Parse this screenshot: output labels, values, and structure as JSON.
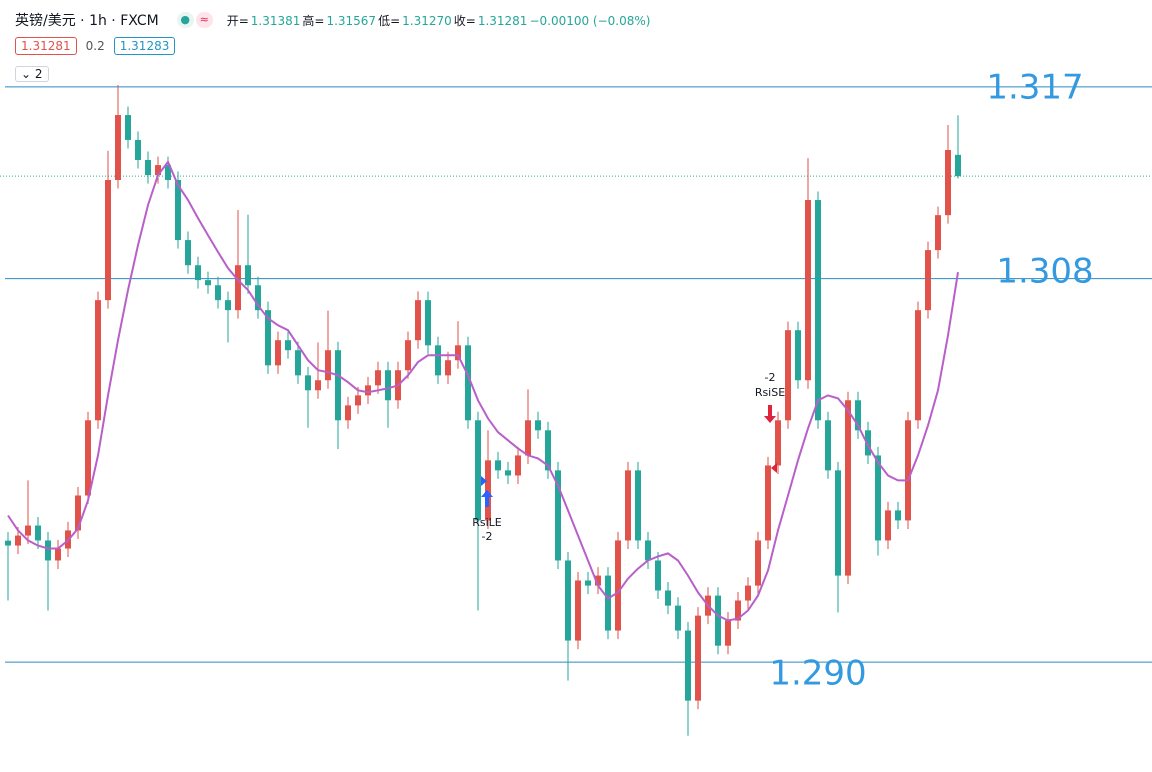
{
  "header": {
    "symbol": "英镑/美元 · 1h · FXCM",
    "ohlc": [
      {
        "label": "开=",
        "value": "1.31381"
      },
      {
        "label": "高=",
        "value": "1.31567"
      },
      {
        "label": "低=",
        "value": "1.31270"
      },
      {
        "label": "收=",
        "value": "1.31281"
      }
    ],
    "change": "−0.00100 (−0.08%)",
    "bid": "1.31281",
    "spread": "0.2",
    "ask": "1.31283",
    "indicators": "2"
  },
  "chart_data": {
    "type": "candlestick",
    "up_color": "#e0524a",
    "down_color": "#26a69a",
    "ylim": [
      1.28484,
      1.32108
    ],
    "open": [
      1.2957,
      1.29547,
      1.29594,
      1.29641,
      1.29571,
      1.29477,
      1.29533,
      1.29618,
      1.29782,
      1.30135,
      1.30699,
      1.31263,
      1.31568,
      1.31451,
      1.31357,
      1.31286,
      1.31333,
      1.31263,
      1.30981,
      1.30863,
      1.30793,
      1.30769,
      1.30699,
      1.30652,
      1.30863,
      1.30769,
      1.30652,
      1.30393,
      1.30511,
      1.30464,
      1.30346,
      1.30276,
      1.30323,
      1.30464,
      1.30135,
      1.30205,
      1.30252,
      1.30299,
      1.3037,
      1.30229,
      1.3037,
      1.30511,
      1.30699,
      1.30487,
      1.30346,
      1.30417,
      1.30487,
      1.30135,
      1.29665,
      1.29947,
      1.299,
      1.29876,
      1.2997,
      1.30135,
      1.30088,
      1.299,
      1.29477,
      1.29101,
      1.29383,
      1.29359,
      1.29406,
      1.29148,
      1.29571,
      1.299,
      1.29571,
      1.29477,
      1.29336,
      1.29265,
      1.29148,
      1.28819,
      1.29218,
      1.29312,
      1.29077,
      1.29195,
      1.29289,
      1.29359,
      1.29571,
      1.29923,
      1.30135,
      1.30558,
      1.30323,
      1.31169,
      1.30135,
      1.299,
      1.29406,
      1.30229,
      1.30088,
      1.2997,
      1.29571,
      1.29712,
      1.29665,
      1.30135,
      1.30652,
      1.30934,
      1.31098,
      1.31381
    ],
    "high": [
      1.2961,
      1.29634,
      1.29853,
      1.29681,
      1.29611,
      1.29573,
      1.29658,
      1.29822,
      1.30175,
      1.30739,
      1.314,
      1.31709,
      1.31608,
      1.31491,
      1.31397,
      1.31373,
      1.31373,
      1.31303,
      1.31021,
      1.30903,
      1.30833,
      1.30809,
      1.30739,
      1.31122,
      1.311,
      1.30809,
      1.30692,
      1.30551,
      1.30551,
      1.30504,
      1.30386,
      1.305,
      1.3065,
      1.30504,
      1.30245,
      1.30292,
      1.30339,
      1.3041,
      1.3041,
      1.3041,
      1.30551,
      1.3074,
      1.30739,
      1.30527,
      1.30457,
      1.306,
      1.30527,
      1.30175,
      1.30088,
      1.29987,
      1.2994,
      1.3001,
      1.3028,
      1.30175,
      1.30128,
      1.2994,
      1.29517,
      1.29423,
      1.29423,
      1.29446,
      1.29446,
      1.29611,
      1.2994,
      1.2994,
      1.29611,
      1.29517,
      1.29376,
      1.29305,
      1.29188,
      1.29258,
      1.29352,
      1.29352,
      1.29235,
      1.29329,
      1.29399,
      1.29611,
      1.29963,
      1.30175,
      1.30598,
      1.30598,
      1.31366,
      1.31209,
      1.30175,
      1.2994,
      1.30269,
      1.30269,
      1.30128,
      1.3001,
      1.29752,
      1.29752,
      1.30175,
      1.30692,
      1.30974,
      1.31138,
      1.31521,
      1.31567
    ],
    "low": [
      1.29289,
      1.29507,
      1.29554,
      1.29531,
      1.29242,
      1.29437,
      1.29493,
      1.29578,
      1.29742,
      1.30095,
      1.30659,
      1.31223,
      1.31411,
      1.31317,
      1.31246,
      1.31246,
      1.31223,
      1.30941,
      1.30823,
      1.30753,
      1.30729,
      1.30659,
      1.305,
      1.30612,
      1.30729,
      1.30612,
      1.30353,
      1.30353,
      1.30424,
      1.30306,
      1.301,
      1.30236,
      1.30283,
      1.3,
      1.30095,
      1.30165,
      1.30212,
      1.30259,
      1.301,
      1.30189,
      1.3033,
      1.30471,
      1.30447,
      1.30306,
      1.30306,
      1.30377,
      1.30095,
      1.29242,
      1.29625,
      1.2986,
      1.29836,
      1.29836,
      1.2993,
      1.30048,
      1.2986,
      1.29437,
      1.28913,
      1.29061,
      1.29319,
      1.29319,
      1.29108,
      1.29108,
      1.29531,
      1.29531,
      1.29437,
      1.29296,
      1.29225,
      1.29108,
      1.28654,
      1.28779,
      1.29178,
      1.29037,
      1.29037,
      1.29155,
      1.29249,
      1.29319,
      1.29531,
      1.29883,
      1.30095,
      1.30283,
      1.30283,
      1.30095,
      1.2986,
      1.29233,
      1.29366,
      1.30048,
      1.2993,
      1.295,
      1.29531,
      1.29625,
      1.29625,
      1.30095,
      1.30612,
      1.30894,
      1.31058,
      1.3127
    ],
    "close": [
      1.29547,
      1.29594,
      1.29641,
      1.29571,
      1.29477,
      1.29533,
      1.29618,
      1.29782,
      1.30135,
      1.30699,
      1.31263,
      1.31568,
      1.31451,
      1.31357,
      1.31286,
      1.31333,
      1.31263,
      1.30981,
      1.30863,
      1.30793,
      1.30769,
      1.30699,
      1.30652,
      1.30863,
      1.30769,
      1.30652,
      1.30393,
      1.30511,
      1.30464,
      1.30346,
      1.30276,
      1.30323,
      1.30464,
      1.30135,
      1.30205,
      1.30252,
      1.30299,
      1.3037,
      1.30229,
      1.3037,
      1.30511,
      1.30699,
      1.30487,
      1.30346,
      1.30417,
      1.30487,
      1.30135,
      1.29665,
      1.29947,
      1.299,
      1.29876,
      1.2997,
      1.30135,
      1.30088,
      1.299,
      1.29477,
      1.29101,
      1.29383,
      1.29359,
      1.29406,
      1.29148,
      1.29571,
      1.299,
      1.29571,
      1.29477,
      1.29336,
      1.29265,
      1.29148,
      1.28819,
      1.29218,
      1.29312,
      1.29077,
      1.29195,
      1.29289,
      1.29359,
      1.29571,
      1.29923,
      1.30135,
      1.30558,
      1.30323,
      1.31169,
      1.30135,
      1.299,
      1.29406,
      1.30229,
      1.30088,
      1.2997,
      1.29571,
      1.29712,
      1.29665,
      1.30135,
      1.30652,
      1.30934,
      1.31098,
      1.31404,
      1.31281
    ],
    "ma": {
      "color": "#b85fc9",
      "values": [
        1.29688,
        1.29618,
        1.29571,
        1.29547,
        1.29533,
        1.29533,
        1.29571,
        1.29627,
        1.29759,
        1.2997,
        1.30252,
        1.30511,
        1.30746,
        1.30957,
        1.31145,
        1.31286,
        1.31348,
        1.31239,
        1.31169,
        1.31084,
        1.31004,
        1.30925,
        1.30849,
        1.30793,
        1.30746,
        1.30675,
        1.30614,
        1.30581,
        1.30558,
        1.30487,
        1.30417,
        1.3037,
        1.30361,
        1.30346,
        1.30314,
        1.30276,
        1.30267,
        1.30276,
        1.30285,
        1.30299,
        1.30346,
        1.30408,
        1.3044,
        1.3044,
        1.3044,
        1.3044,
        1.30346,
        1.30229,
        1.30144,
        1.30079,
        1.30041,
        1.30003,
        1.2997,
        1.29956,
        1.29923,
        1.29829,
        1.29712,
        1.29594,
        1.29477,
        1.29359,
        1.29298,
        1.29327,
        1.29392,
        1.29439,
        1.29477,
        1.29496,
        1.2951,
        1.29477,
        1.29406,
        1.29327,
        1.29265,
        1.29218,
        1.29195,
        1.29204,
        1.29242,
        1.29312,
        1.2943,
        1.29618,
        1.29782,
        1.29947,
        1.30097,
        1.30229,
        1.30252,
        1.30238,
        1.30182,
        1.30111,
        1.30017,
        1.29938,
        1.29876,
        1.29853,
        1.29853,
        1.2997,
        1.30111,
        1.30276,
        1.30534,
        1.3083
      ]
    },
    "levels": [
      {
        "value": 1.317,
        "label": "1.317"
      },
      {
        "value": 1.308,
        "label": "1.308"
      },
      {
        "value": 1.29,
        "label": "1.290"
      }
    ],
    "level_color": "#2a8bbf",
    "level_label_color": "#3399e0",
    "last_price_line": true,
    "signals": [
      {
        "label": "RsiSE",
        "qty": -2
      },
      {
        "label": "RsiLE",
        "qty": -2
      }
    ]
  }
}
